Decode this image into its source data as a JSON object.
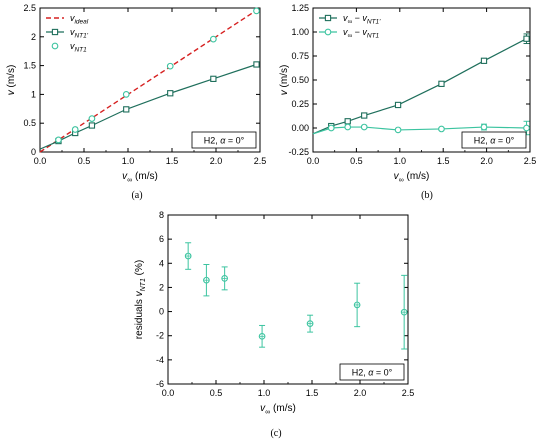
{
  "colors": {
    "teal": "#1f6f5c",
    "light_teal": "#3cc4a0",
    "ideal_red": "#d62020",
    "axis": "#000000",
    "frame": "#000000"
  },
  "chart_data": [
    {
      "panel_label": "(a)",
      "type": "line",
      "xlabel": "v∞ (m/s)",
      "ylabel": "v (m/s)",
      "xlim": [
        0,
        2.5
      ],
      "ylim": [
        0,
        2.5
      ],
      "x_ticks": [
        "0.0",
        "0.5",
        "1.0",
        "1.5",
        "2.0",
        "2.5"
      ],
      "y_ticks": [
        "0",
        "0.5",
        "1",
        "1.5",
        "2",
        "2.5"
      ],
      "x_tick_values": [
        0,
        0.5,
        1.0,
        1.5,
        2.0,
        2.5
      ],
      "y_tick_values": [
        0,
        0.5,
        1,
        1.5,
        2,
        2.5
      ],
      "annotation": "H2, α = 0°",
      "legend_position": "top-left",
      "grid": false,
      "series": [
        {
          "name": "videal",
          "style": "dashed-line",
          "color": "#d62020",
          "x": [
            0,
            2.5
          ],
          "y": [
            0,
            2.5
          ]
        },
        {
          "name": "vNT1'",
          "style": "line-open-square",
          "color": "#1f6f5c",
          "x": [
            0.0,
            0.21,
            0.4,
            0.59,
            0.98,
            1.48,
            1.97,
            2.46
          ],
          "y": [
            0.05,
            0.19,
            0.33,
            0.46,
            0.74,
            1.02,
            1.27,
            1.52
          ]
        },
        {
          "name": "vNT1",
          "style": "open-circle",
          "color": "#3cc4a0",
          "x": [
            0.21,
            0.4,
            0.59,
            0.98,
            1.48,
            1.97,
            2.46
          ],
          "y": [
            0.21,
            0.39,
            0.58,
            1.0,
            1.49,
            1.96,
            2.45
          ]
        }
      ]
    },
    {
      "panel_label": "(b)",
      "type": "line",
      "xlabel": "v∞ (m/s)",
      "ylabel": "v (m/s)",
      "xlim": [
        0,
        2.5
      ],
      "ylim": [
        -0.25,
        1.25
      ],
      "x_ticks": [
        "0.0",
        "0.5",
        "1.0",
        "1.5",
        "2.0",
        "2.5"
      ],
      "y_ticks": [
        "-0.25",
        "0.00",
        "0.25",
        "0.50",
        "0.75",
        "1.00",
        "1.25"
      ],
      "x_tick_values": [
        0,
        0.5,
        1.0,
        1.5,
        2.0,
        2.5
      ],
      "y_tick_values": [
        -0.25,
        0,
        0.25,
        0.5,
        0.75,
        1.0,
        1.25
      ],
      "annotation": "H2, α = 0°",
      "legend_position": "top-left",
      "grid": false,
      "series": [
        {
          "name": "v∞ − vNT1'",
          "style": "line-open-square",
          "color": "#1f6f5c",
          "x": [
            0.0,
            0.21,
            0.4,
            0.59,
            0.98,
            1.48,
            1.97,
            2.46
          ],
          "y": [
            -0.06,
            0.02,
            0.07,
            0.13,
            0.24,
            0.46,
            0.7,
            0.93
          ],
          "err": [
            0,
            0.01,
            0.01,
            0.01,
            0.01,
            0.01,
            0.02,
            0.05
          ]
        },
        {
          "name": "v∞ − vNT1",
          "style": "line-open-circle",
          "color": "#3cc4a0",
          "x": [
            0.0,
            0.21,
            0.4,
            0.59,
            0.98,
            1.48,
            1.97,
            2.46
          ],
          "y": [
            -0.06,
            0.0,
            0.01,
            0.01,
            -0.02,
            -0.01,
            0.01,
            0.0
          ],
          "err": [
            0,
            0.01,
            0.01,
            0.01,
            0.01,
            0.01,
            0.03,
            0.07
          ]
        }
      ]
    },
    {
      "panel_label": "(c)",
      "type": "scatter",
      "xlabel": "v∞ (m/s)",
      "ylabel": "residuals vNT1 (%)",
      "xlim": [
        0,
        2.5
      ],
      "ylim": [
        -6,
        8
      ],
      "x_ticks": [
        "0.0",
        "0.5",
        "1.0",
        "1.5",
        "2.0",
        "2.5"
      ],
      "y_ticks": [
        "-6",
        "-4",
        "-2",
        "0",
        "2",
        "4",
        "6",
        "8"
      ],
      "x_tick_values": [
        0,
        0.5,
        1.0,
        1.5,
        2.0,
        2.5
      ],
      "y_tick_values": [
        -6,
        -4,
        -2,
        0,
        2,
        4,
        6,
        8
      ],
      "annotation": "H2, α = 0°",
      "grid": false,
      "series": [
        {
          "name": "",
          "style": "open-circle-errorbar",
          "color": "#3cc4a0",
          "x": [
            0.21,
            0.4,
            0.59,
            0.98,
            1.48,
            1.97,
            2.46
          ],
          "y": [
            4.6,
            2.6,
            2.75,
            -2.05,
            -1.0,
            0.55,
            -0.05
          ],
          "err": [
            1.1,
            1.3,
            0.95,
            0.9,
            0.7,
            1.8,
            3.05
          ]
        }
      ]
    }
  ]
}
